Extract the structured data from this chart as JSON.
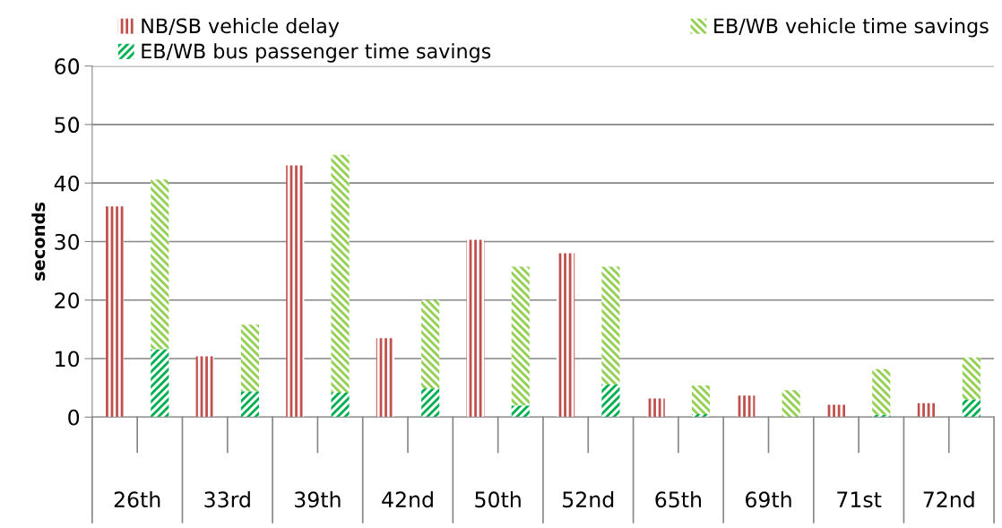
{
  "chart_data": {
    "type": "bar",
    "stacked": true,
    "ylabel": "seconds",
    "categories": [
      null,
      null,
      null,
      null,
      null,
      null,
      null,
      null,
      null,
      null,
      null,
      null,
      null,
      null,
      null,
      null,
      null,
      null,
      null,
      null
    ],
    "annotations": [
      "26th",
      "33rd",
      "39th",
      "42nd",
      "50th",
      "52nd",
      "65th",
      "69th",
      "71st",
      "72nd"
    ],
    "series": [
      {
        "name": "NB/SB vehicle delay",
        "color": "#c0504d",
        "values": [
          36,
          null,
          10.4,
          null,
          43,
          null,
          13.5,
          null,
          30.3,
          null,
          28,
          null,
          3.2,
          null,
          3.7,
          null,
          2.1,
          null,
          2.4,
          null
        ]
      },
      {
        "name": "EB/WB bus passenger time savings",
        "color": "#00b050",
        "values": [
          null,
          11.6,
          null,
          4.4,
          null,
          4.2,
          null,
          4.9,
          null,
          2.0,
          null,
          5.6,
          null,
          0.5,
          null,
          0,
          null,
          0.4,
          null,
          3.0
        ]
      },
      {
        "name": "EB/WB vehicle time savings",
        "color": "#92d050",
        "values": [
          null,
          29.0,
          null,
          11.4,
          null,
          40.6,
          null,
          15.1,
          null,
          23.7,
          null,
          20.1,
          null,
          4.9,
          null,
          4.6,
          null,
          7.8,
          null,
          7.2
        ]
      }
    ],
    "ylim": [
      0,
      60
    ],
    "yticks": [
      0,
      10,
      20,
      30,
      40,
      50,
      60
    ],
    "grid": "y",
    "legend": "top"
  }
}
